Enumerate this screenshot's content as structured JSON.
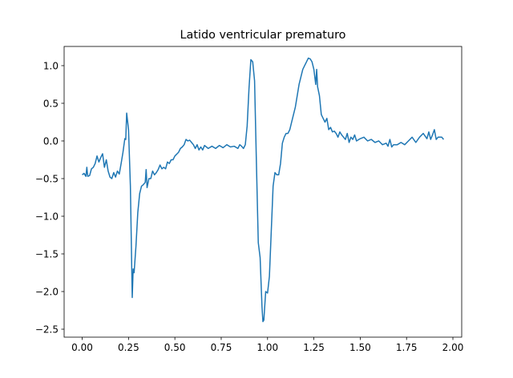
{
  "chart_data": {
    "type": "line",
    "title": "Latido ventricular prematuro",
    "x": [
      0.0,
      0.01,
      0.02,
      0.025,
      0.03,
      0.04,
      0.05,
      0.06,
      0.07,
      0.08,
      0.09,
      0.1,
      0.11,
      0.12,
      0.13,
      0.14,
      0.15,
      0.16,
      0.17,
      0.18,
      0.19,
      0.2,
      0.21,
      0.22,
      0.23,
      0.235,
      0.24,
      0.25,
      0.26,
      0.27,
      0.275,
      0.28,
      0.29,
      0.3,
      0.31,
      0.32,
      0.33,
      0.34,
      0.345,
      0.35,
      0.36,
      0.37,
      0.38,
      0.39,
      0.4,
      0.41,
      0.42,
      0.43,
      0.44,
      0.45,
      0.46,
      0.47,
      0.48,
      0.49,
      0.5,
      0.52,
      0.53,
      0.54,
      0.55,
      0.56,
      0.57,
      0.58,
      0.59,
      0.6,
      0.61,
      0.62,
      0.63,
      0.64,
      0.65,
      0.66,
      0.68,
      0.7,
      0.72,
      0.74,
      0.76,
      0.78,
      0.8,
      0.82,
      0.84,
      0.85,
      0.86,
      0.87,
      0.88,
      0.89,
      0.9,
      0.91,
      0.92,
      0.93,
      0.94,
      0.95,
      0.96,
      0.97,
      0.975,
      0.98,
      0.99,
      1.0,
      1.01,
      1.02,
      1.03,
      1.04,
      1.05,
      1.06,
      1.07,
      1.08,
      1.09,
      1.1,
      1.11,
      1.12,
      1.13,
      1.14,
      1.15,
      1.16,
      1.17,
      1.18,
      1.19,
      1.2,
      1.21,
      1.22,
      1.23,
      1.24,
      1.25,
      1.26,
      1.265,
      1.27,
      1.28,
      1.29,
      1.3,
      1.31,
      1.32,
      1.33,
      1.34,
      1.35,
      1.36,
      1.37,
      1.38,
      1.39,
      1.4,
      1.41,
      1.42,
      1.43,
      1.44,
      1.45,
      1.46,
      1.47,
      1.48,
      1.5,
      1.52,
      1.54,
      1.56,
      1.58,
      1.6,
      1.62,
      1.64,
      1.65,
      1.66,
      1.67,
      1.68,
      1.7,
      1.72,
      1.74,
      1.76,
      1.78,
      1.8,
      1.82,
      1.84,
      1.86,
      1.87,
      1.88,
      1.89,
      1.9,
      1.91,
      1.92,
      1.94,
      1.95
    ],
    "series": [
      {
        "color": "#1f77b4",
        "values": [
          -0.45,
          -0.43,
          -0.47,
          -0.35,
          -0.47,
          -0.46,
          -0.37,
          -0.35,
          -0.3,
          -0.2,
          -0.28,
          -0.22,
          -0.17,
          -0.35,
          -0.25,
          -0.4,
          -0.48,
          -0.5,
          -0.42,
          -0.48,
          -0.4,
          -0.44,
          -0.3,
          -0.15,
          0.03,
          0.02,
          0.37,
          0.15,
          -0.6,
          -2.08,
          -1.7,
          -1.75,
          -1.4,
          -0.95,
          -0.7,
          -0.6,
          -0.58,
          -0.55,
          -0.38,
          -0.62,
          -0.5,
          -0.5,
          -0.4,
          -0.45,
          -0.42,
          -0.38,
          -0.32,
          -0.37,
          -0.35,
          -0.37,
          -0.28,
          -0.3,
          -0.25,
          -0.25,
          -0.2,
          -0.15,
          -0.1,
          -0.08,
          -0.05,
          0.02,
          0.0,
          0.01,
          -0.02,
          -0.05,
          -0.1,
          -0.05,
          -0.12,
          -0.08,
          -0.12,
          -0.06,
          -0.1,
          -0.07,
          -0.1,
          -0.06,
          -0.09,
          -0.05,
          -0.08,
          -0.07,
          -0.1,
          -0.05,
          -0.07,
          -0.1,
          -0.05,
          0.2,
          0.7,
          1.08,
          1.05,
          0.8,
          -0.3,
          -1.35,
          -1.55,
          -2.2,
          -2.4,
          -2.38,
          -2.0,
          -2.02,
          -1.8,
          -1.2,
          -0.6,
          -0.42,
          -0.45,
          -0.45,
          -0.3,
          -0.03,
          0.05,
          0.1,
          0.1,
          0.15,
          0.25,
          0.35,
          0.45,
          0.6,
          0.75,
          0.85,
          0.95,
          1.0,
          1.05,
          1.1,
          1.09,
          1.05,
          0.95,
          0.75,
          0.95,
          0.72,
          0.6,
          0.35,
          0.3,
          0.25,
          0.3,
          0.15,
          0.18,
          0.12,
          0.13,
          0.1,
          0.05,
          0.12,
          0.08,
          0.05,
          0.02,
          0.1,
          -0.02,
          0.05,
          0.02,
          0.08,
          0.0,
          0.03,
          0.05,
          0.0,
          0.02,
          -0.02,
          0.0,
          -0.05,
          -0.03,
          -0.07,
          0.02,
          -0.08,
          -0.05,
          -0.05,
          -0.02,
          -0.05,
          0.0,
          0.05,
          -0.02,
          0.05,
          0.1,
          0.03,
          0.12,
          0.02,
          0.08,
          0.15,
          0.02,
          0.05,
          0.05,
          0.02
        ]
      }
    ],
    "xlim": [
      -0.0975,
      2.0475
    ],
    "ylim": [
      -2.606,
      1.255
    ],
    "xticks": [
      {
        "value": 0,
        "label": "0.00"
      },
      {
        "value": 0.25,
        "label": "0.25"
      },
      {
        "value": 0.5,
        "label": "0.50"
      },
      {
        "value": 0.75,
        "label": "0.75"
      },
      {
        "value": 1,
        "label": "1.00"
      },
      {
        "value": 1.25,
        "label": "1.25"
      },
      {
        "value": 1.5,
        "label": "1.50"
      },
      {
        "value": 1.75,
        "label": "1.75"
      },
      {
        "value": 2,
        "label": "2.00"
      }
    ],
    "yticks": [
      {
        "value": -2.5,
        "label": "−2.5"
      },
      {
        "value": -2,
        "label": "−2.0"
      },
      {
        "value": -1.5,
        "label": "−1.5"
      },
      {
        "value": -1,
        "label": "−1.0"
      },
      {
        "value": -0.5,
        "label": "−0.5"
      },
      {
        "value": 0,
        "label": "0.0"
      },
      {
        "value": 0.5,
        "label": "0.5"
      },
      {
        "value": 1,
        "label": "1.0"
      }
    ]
  }
}
